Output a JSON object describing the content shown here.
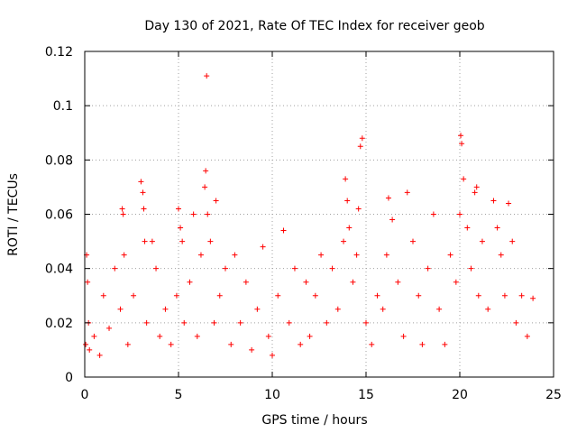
{
  "chart_data": {
    "type": "scatter",
    "title": "Day 130 of 2021, Rate Of TEC Index for receiver geob",
    "xlabel": "GPS time / hours",
    "ylabel": "ROTI / TECUs",
    "xlim": [
      0,
      25
    ],
    "ylim": [
      0,
      0.12
    ],
    "grid": true,
    "marker": "plus",
    "color": "#ff0000",
    "x_ticks": [
      0,
      5,
      10,
      15,
      20,
      25
    ],
    "x_tick_labels": [
      "0",
      "5",
      "10",
      "15",
      "20",
      "25"
    ],
    "y_ticks": [
      0,
      0.02,
      0.04,
      0.06,
      0.08,
      0.1,
      0.12
    ],
    "y_tick_labels": [
      "0",
      "0.02",
      "0.04",
      "0.06",
      "0.08",
      "0.1",
      "0.12"
    ],
    "series": [
      {
        "name": "ROTI",
        "x": [
          0.05,
          0.1,
          0.15,
          0.2,
          0.25,
          0.5,
          0.8,
          1.0,
          1.3,
          1.6,
          1.9,
          2.0,
          2.05,
          2.1,
          2.3,
          2.6,
          3.0,
          3.1,
          3.15,
          3.2,
          3.3,
          3.6,
          3.8,
          4.0,
          4.3,
          4.6,
          4.9,
          5.0,
          5.1,
          5.2,
          5.3,
          5.6,
          5.8,
          6.0,
          6.2,
          6.4,
          6.45,
          6.5,
          6.55,
          6.7,
          6.9,
          7.0,
          7.2,
          7.5,
          7.8,
          8.0,
          8.3,
          8.6,
          8.9,
          9.2,
          9.5,
          9.8,
          10.0,
          10.3,
          10.6,
          10.9,
          11.2,
          11.5,
          11.8,
          12.0,
          12.3,
          12.6,
          12.9,
          13.2,
          13.5,
          13.8,
          13.9,
          14.0,
          14.1,
          14.3,
          14.5,
          14.6,
          14.7,
          14.8,
          15.0,
          15.3,
          15.6,
          15.9,
          16.1,
          16.2,
          16.4,
          16.7,
          17.0,
          17.2,
          17.5,
          17.8,
          18.0,
          18.3,
          18.6,
          18.9,
          19.2,
          19.5,
          19.8,
          20.0,
          20.05,
          20.1,
          20.2,
          20.4,
          20.6,
          20.8,
          20.9,
          21.0,
          21.2,
          21.5,
          21.8,
          22.0,
          22.2,
          22.4,
          22.6,
          22.8,
          23.0,
          23.3,
          23.6,
          23.9
        ],
        "y": [
          0.012,
          0.045,
          0.035,
          0.02,
          0.01,
          0.015,
          0.008,
          0.03,
          0.018,
          0.04,
          0.025,
          0.062,
          0.06,
          0.045,
          0.012,
          0.03,
          0.072,
          0.068,
          0.062,
          0.05,
          0.02,
          0.05,
          0.04,
          0.015,
          0.025,
          0.012,
          0.03,
          0.062,
          0.055,
          0.05,
          0.02,
          0.035,
          0.06,
          0.015,
          0.045,
          0.07,
          0.076,
          0.111,
          0.06,
          0.05,
          0.02,
          0.065,
          0.03,
          0.04,
          0.012,
          0.045,
          0.02,
          0.035,
          0.01,
          0.025,
          0.048,
          0.015,
          0.008,
          0.03,
          0.054,
          0.02,
          0.04,
          0.012,
          0.035,
          0.015,
          0.03,
          0.045,
          0.02,
          0.04,
          0.025,
          0.05,
          0.073,
          0.065,
          0.055,
          0.035,
          0.045,
          0.062,
          0.085,
          0.088,
          0.02,
          0.012,
          0.03,
          0.025,
          0.045,
          0.066,
          0.058,
          0.035,
          0.015,
          0.068,
          0.05,
          0.03,
          0.012,
          0.04,
          0.06,
          0.025,
          0.012,
          0.045,
          0.035,
          0.06,
          0.089,
          0.086,
          0.073,
          0.055,
          0.04,
          0.068,
          0.07,
          0.03,
          0.05,
          0.025,
          0.065,
          0.055,
          0.045,
          0.03,
          0.064,
          0.05,
          0.02,
          0.03,
          0.015,
          0.029
        ]
      }
    ]
  }
}
